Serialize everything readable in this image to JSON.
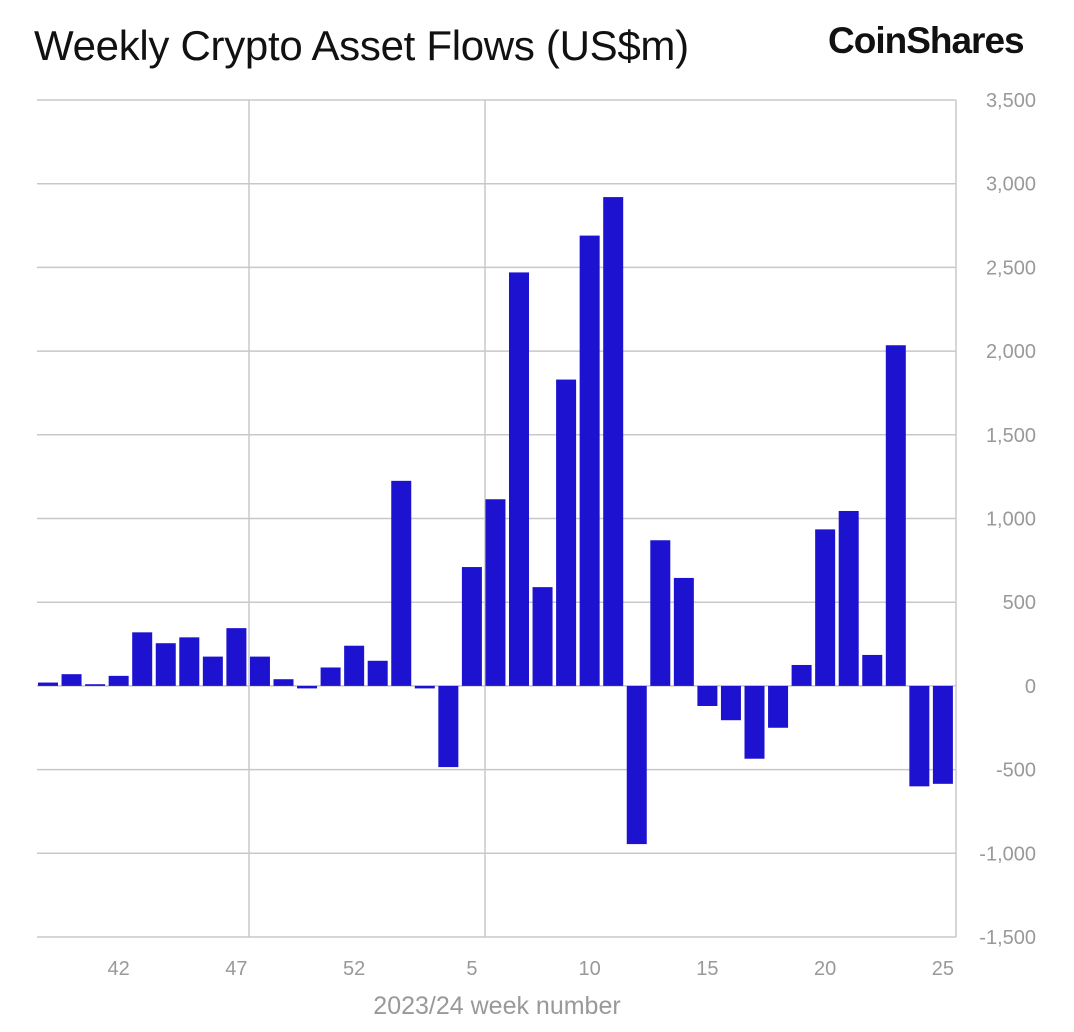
{
  "brand": "CoinShares",
  "chart_data": {
    "type": "bar",
    "title": "Weekly Crypto Asset Flows (US$m)",
    "xlabel": "2023/24 week number",
    "ylabel": "",
    "ylim": [
      -1500,
      3500
    ],
    "yticks": [
      3500,
      3000,
      2500,
      2000,
      1500,
      1000,
      500,
      0,
      -500,
      -1000,
      -1500
    ],
    "ytick_labels": [
      "3,500",
      "3,000",
      "2,500",
      "2,000",
      "1,500",
      "1,000",
      "500",
      "0",
      "-500",
      "-1,000",
      "-1,500"
    ],
    "xtick_labels": [
      "42",
      "47",
      "52",
      "5",
      "10",
      "15",
      "20",
      "25"
    ],
    "categories": [
      39,
      40,
      41,
      42,
      43,
      44,
      45,
      46,
      47,
      48,
      49,
      50,
      51,
      52,
      1,
      2,
      3,
      4,
      5,
      6,
      7,
      8,
      9,
      10,
      11,
      12,
      13,
      14,
      15,
      16,
      17,
      18,
      19,
      20,
      21,
      22,
      23,
      24,
      25
    ],
    "values": [
      20,
      70,
      10,
      60,
      320,
      255,
      290,
      175,
      345,
      175,
      40,
      -15,
      110,
      240,
      150,
      1225,
      -15,
      -485,
      710,
      1115,
      2470,
      590,
      1830,
      2690,
      2920,
      -945,
      870,
      645,
      -120,
      -205,
      -435,
      -250,
      125,
      935,
      1045,
      185,
      2035,
      -600,
      -585
    ],
    "grid": true,
    "legend": "none",
    "bar_color": "#1c12d0"
  }
}
